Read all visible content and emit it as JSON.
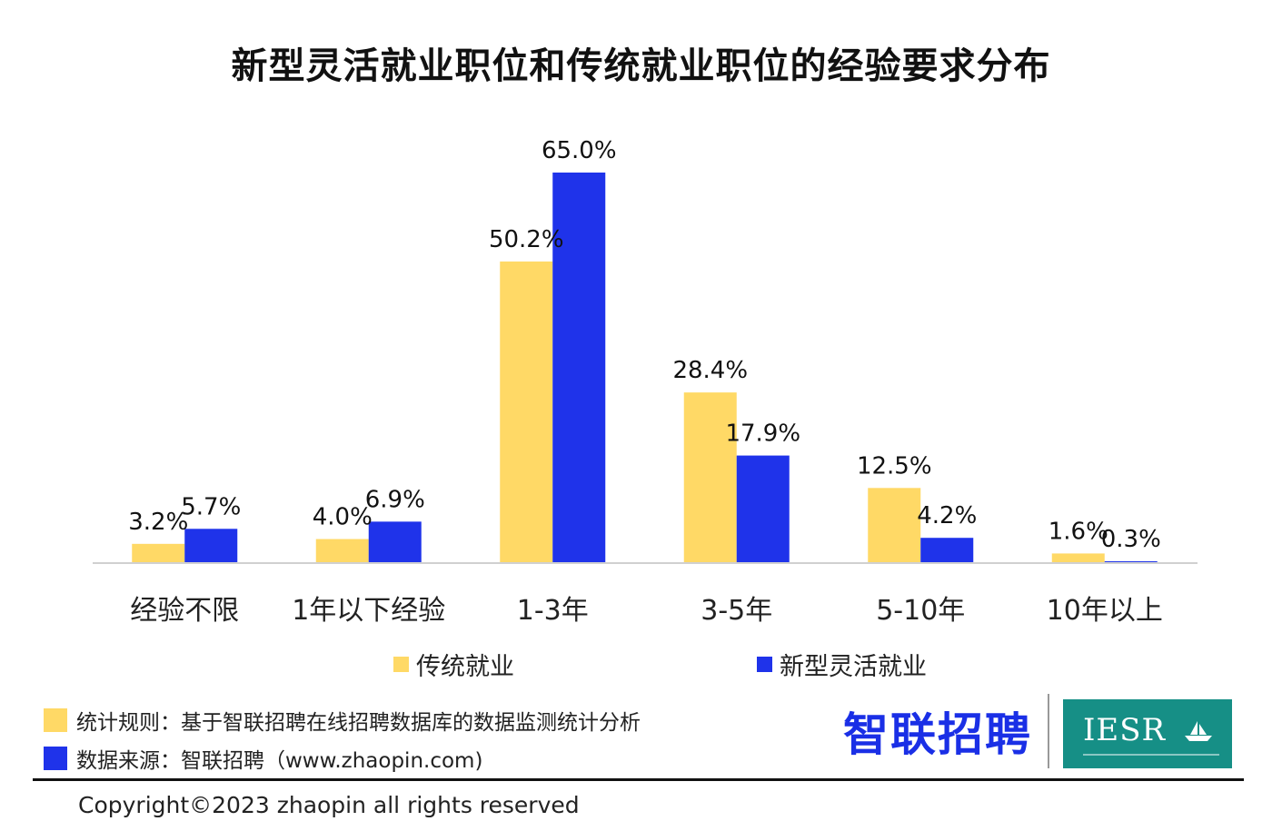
{
  "chart_data": {
    "type": "bar",
    "title": "新型灵活就业职位和传统就业职位的经验要求分布",
    "categories": [
      "经验不限",
      "1年以下经验",
      "1-3年",
      "3-5年",
      "5-10年",
      "10年以上"
    ],
    "series": [
      {
        "name": "传统就业",
        "values": [
          3.2,
          4.0,
          50.2,
          28.4,
          12.5,
          1.6
        ],
        "labels": [
          "3.2%",
          "4.0%",
          "50.2%",
          "28.4%",
          "12.5%",
          "1.6%"
        ],
        "color": "#ffd966"
      },
      {
        "name": "新型灵活就业",
        "values": [
          5.7,
          6.9,
          65.0,
          17.9,
          4.2,
          0.3
        ],
        "labels": [
          "5.7%",
          "6.9%",
          "65.0%",
          "17.9%",
          "4.2%",
          "0.3%"
        ],
        "color": "#1f33ea"
      }
    ],
    "ylim": [
      0,
      65.0
    ],
    "grid": false,
    "legend_position": "bottom"
  },
  "notes": {
    "rule": "统计规则：基于智联招聘在线招聘数据库的数据监测统计分析",
    "source": "数据来源：智联招聘（www.zhaopin.com)"
  },
  "branding": {
    "logo_text": "智联招聘",
    "partner_logo_text": "IESR"
  },
  "footer": {
    "copyright": "Copyright©2023 zhaopin all rights reserved"
  }
}
